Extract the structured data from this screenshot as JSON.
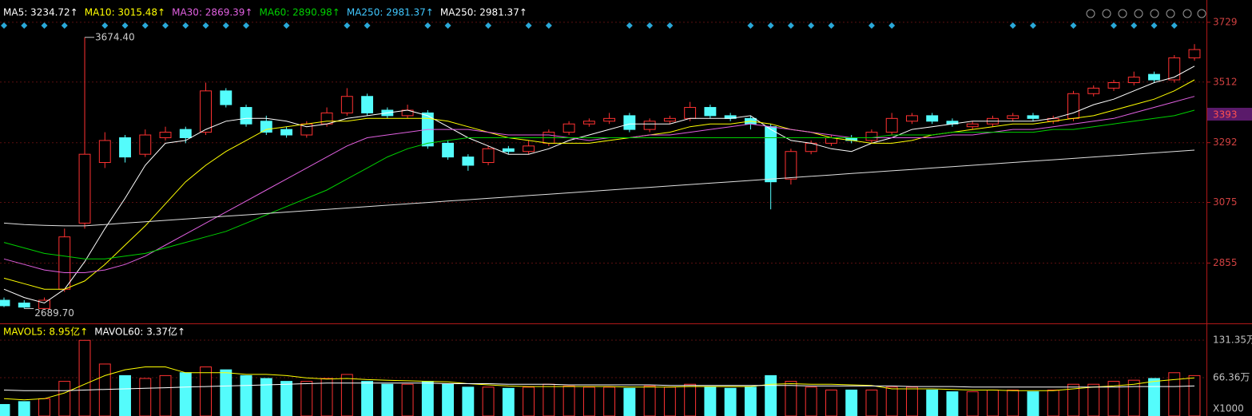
{
  "chart_data": {
    "type": "candlestick",
    "header": [
      {
        "text": "MA5: 3234.72↑",
        "color": "#ffffff"
      },
      {
        "text": "MA10: 3015.48↑",
        "color": "#ffff00"
      },
      {
        "text": "MA30: 2869.39↑",
        "color": "#e060e0"
      },
      {
        "text": "MA60: 2890.98↑",
        "color": "#00d000"
      },
      {
        "text": "MA250: 2981.37↑",
        "color": "#40c8ff"
      },
      {
        "text": "MA250: 2981.37↑",
        "color": "#ffffff"
      }
    ],
    "volume_header": [
      {
        "text": "MAVOL5: 8.95亿↑",
        "color": "#ffff00"
      },
      {
        "text": "MAVOL60: 3.37亿↑",
        "color": "#ffffff"
      }
    ],
    "ylim": [
      2636,
      3752
    ],
    "yticks": [
      3729,
      3512,
      3292,
      3075,
      2855
    ],
    "current_price": 3393,
    "max_label": {
      "value": 3674.4,
      "label": "3674.40"
    },
    "min_label": {
      "value": 2689.7,
      "label": "2689.70"
    },
    "up_color": "#ff3232",
    "down_color": "#54fcfc",
    "open": [
      2720,
      2710,
      2690,
      2760,
      3000,
      3220,
      3310,
      3250,
      3310,
      3340,
      3330,
      3480,
      3420,
      3370,
      3340,
      3320,
      3360,
      3400,
      3460,
      3410,
      3390,
      3400,
      3290,
      3240,
      3220,
      3270,
      3260,
      3290,
      3330,
      3360,
      3370,
      3390,
      3340,
      3370,
      3380,
      3420,
      3390,
      3380,
      3350,
      3160,
      3260,
      3290,
      3310,
      3300,
      3330,
      3370,
      3390,
      3370,
      3350,
      3360,
      3380,
      3390,
      3370,
      3380,
      3470,
      3490,
      3510,
      3540,
      3520,
      3600
    ],
    "high": [
      2730,
      2720,
      2730,
      2980,
      3674.4,
      3330,
      3320,
      3340,
      3350,
      3350,
      3510,
      3490,
      3430,
      3390,
      3350,
      3370,
      3420,
      3490,
      3470,
      3420,
      3430,
      3410,
      3300,
      3250,
      3280,
      3280,
      3300,
      3340,
      3370,
      3380,
      3400,
      3400,
      3380,
      3390,
      3440,
      3430,
      3400,
      3390,
      3360,
      3270,
      3300,
      3320,
      3320,
      3340,
      3400,
      3400,
      3400,
      3380,
      3370,
      3390,
      3400,
      3400,
      3390,
      3480,
      3500,
      3520,
      3550,
      3550,
      3610,
      3650
    ],
    "low": [
      2695,
      2689.7,
      2690,
      2750,
      2980,
      3200,
      3220,
      3240,
      3300,
      3290,
      3320,
      3420,
      3350,
      3320,
      3310,
      3310,
      3350,
      3390,
      3390,
      3380,
      3380,
      3270,
      3230,
      3190,
      3210,
      3250,
      3250,
      3280,
      3320,
      3350,
      3360,
      3330,
      3330,
      3360,
      3370,
      3380,
      3370,
      3340,
      3050,
      3140,
      3250,
      3280,
      3290,
      3290,
      3320,
      3360,
      3360,
      3350,
      3340,
      3350,
      3370,
      3370,
      3360,
      3370,
      3460,
      3480,
      3500,
      3510,
      3510,
      3590
    ],
    "close": [
      2700,
      2695,
      2720,
      2950,
      3250,
      3300,
      3240,
      3320,
      3330,
      3310,
      3480,
      3430,
      3360,
      3330,
      3320,
      3360,
      3400,
      3460,
      3400,
      3390,
      3410,
      3280,
      3240,
      3210,
      3270,
      3260,
      3280,
      3330,
      3360,
      3370,
      3380,
      3340,
      3370,
      3380,
      3420,
      3390,
      3380,
      3360,
      3150,
      3260,
      3290,
      3310,
      3300,
      3330,
      3380,
      3390,
      3370,
      3360,
      3360,
      3380,
      3390,
      3380,
      3380,
      3470,
      3490,
      3510,
      3530,
      3520,
      3600,
      3630
    ],
    "ma_lines": [
      {
        "color": "#ffffff",
        "values": [
          2760,
          2730,
          2710,
          2760,
          2860,
          2980,
          3090,
          3210,
          3290,
          3300,
          3340,
          3370,
          3380,
          3380,
          3370,
          3350,
          3360,
          3380,
          3390,
          3400,
          3410,
          3390,
          3350,
          3310,
          3280,
          3250,
          3250,
          3270,
          3300,
          3320,
          3340,
          3360,
          3360,
          3360,
          3380,
          3380,
          3380,
          3390,
          3340,
          3300,
          3290,
          3270,
          3260,
          3290,
          3310,
          3340,
          3350,
          3360,
          3370,
          3370,
          3370,
          3370,
          3380,
          3400,
          3430,
          3450,
          3480,
          3510,
          3530,
          3570
        ]
      },
      {
        "color": "#ffff00",
        "values": [
          2800,
          2780,
          2760,
          2760,
          2790,
          2850,
          2920,
          2990,
          3070,
          3150,
          3210,
          3260,
          3300,
          3340,
          3350,
          3360,
          3370,
          3370,
          3380,
          3380,
          3380,
          3380,
          3370,
          3350,
          3330,
          3310,
          3300,
          3290,
          3290,
          3290,
          3300,
          3310,
          3320,
          3330,
          3350,
          3360,
          3360,
          3370,
          3360,
          3340,
          3330,
          3310,
          3300,
          3290,
          3290,
          3300,
          3320,
          3330,
          3340,
          3350,
          3360,
          3360,
          3370,
          3380,
          3390,
          3410,
          3430,
          3450,
          3480,
          3520
        ]
      },
      {
        "color": "#e060e0",
        "values": [
          2870,
          2850,
          2830,
          2820,
          2820,
          2830,
          2850,
          2880,
          2920,
          2960,
          3000,
          3040,
          3080,
          3120,
          3160,
          3200,
          3240,
          3280,
          3310,
          3320,
          3330,
          3340,
          3340,
          3340,
          3330,
          3320,
          3320,
          3320,
          3310,
          3300,
          3310,
          3310,
          3320,
          3320,
          3330,
          3340,
          3350,
          3360,
          3350,
          3340,
          3330,
          3320,
          3310,
          3310,
          3310,
          3310,
          3310,
          3320,
          3320,
          3330,
          3340,
          3340,
          3350,
          3360,
          3370,
          3380,
          3400,
          3420,
          3440,
          3460
        ]
      },
      {
        "color": "#00d000",
        "values": [
          2930,
          2910,
          2890,
          2880,
          2870,
          2870,
          2880,
          2890,
          2910,
          2930,
          2950,
          2970,
          3000,
          3030,
          3060,
          3090,
          3120,
          3160,
          3200,
          3240,
          3270,
          3290,
          3300,
          3310,
          3310,
          3310,
          3310,
          3310,
          3310,
          3310,
          3310,
          3310,
          3310,
          3310,
          3310,
          3310,
          3310,
          3310,
          3310,
          3310,
          3310,
          3310,
          3310,
          3310,
          3320,
          3320,
          3320,
          3330,
          3330,
          3330,
          3330,
          3330,
          3340,
          3340,
          3350,
          3360,
          3370,
          3380,
          3390,
          3410
        ]
      },
      {
        "color": "#e0e0e0",
        "values": [
          3000,
          2995,
          2992,
          2990,
          2990,
          2995,
          3000,
          3005,
          3010,
          3015,
          3020,
          3025,
          3030,
          3035,
          3040,
          3045,
          3050,
          3055,
          3060,
          3065,
          3070,
          3075,
          3080,
          3085,
          3090,
          3095,
          3100,
          3105,
          3110,
          3115,
          3120,
          3125,
          3130,
          3135,
          3140,
          3145,
          3150,
          3155,
          3160,
          3165,
          3170,
          3175,
          3180,
          3185,
          3190,
          3195,
          3200,
          3205,
          3210,
          3215,
          3220,
          3225,
          3230,
          3235,
          3240,
          3245,
          3250,
          3255,
          3260,
          3265
        ]
      }
    ],
    "volume": [
      20,
      25,
      30,
      60,
      131,
      90,
      70,
      65,
      70,
      75,
      85,
      80,
      70,
      65,
      60,
      60,
      65,
      72,
      60,
      55,
      55,
      60,
      55,
      50,
      50,
      48,
      50,
      55,
      52,
      50,
      50,
      48,
      52,
      50,
      55,
      50,
      48,
      50,
      70,
      60,
      50,
      45,
      45,
      45,
      50,
      50,
      45,
      42,
      42,
      45,
      45,
      42,
      45,
      55,
      55,
      60,
      62,
      65,
      75,
      70
    ],
    "volume_ylim": [
      0,
      153.5
    ],
    "volume_yticks": [
      {
        "value": 131.35,
        "label": "131.35万"
      },
      {
        "value": 66.36,
        "label": "66.36万"
      }
    ],
    "volume_unit": "X1000",
    "volume_ma_lines": [
      {
        "color": "#ffff00",
        "values": [
          30,
          28,
          30,
          40,
          55,
          70,
          80,
          85,
          85,
          75,
          75,
          75,
          72,
          72,
          70,
          66,
          64,
          65,
          63,
          62,
          61,
          60,
          59,
          56,
          54,
          52,
          51,
          51,
          51,
          51,
          51,
          50,
          50,
          50,
          51,
          51,
          51,
          51,
          55,
          56,
          55,
          55,
          54,
          53,
          47,
          47,
          47,
          46,
          45,
          45,
          44,
          44,
          44,
          47,
          50,
          52,
          55,
          60,
          63,
          66
        ]
      },
      {
        "color": "#ffffff",
        "values": [
          45,
          44,
          44,
          44,
          45,
          46,
          47,
          48,
          49,
          50,
          51,
          52,
          53,
          54,
          55,
          56,
          57,
          57,
          57,
          57,
          57,
          57,
          56,
          56,
          56,
          55,
          55,
          55,
          54,
          54,
          54,
          54,
          54,
          53,
          53,
          53,
          53,
          53,
          53,
          53,
          52,
          52,
          52,
          52,
          52,
          51,
          51,
          51,
          50,
          50,
          50,
          50,
          50,
          50,
          50,
          50,
          51,
          51,
          51,
          52
        ]
      }
    ]
  }
}
